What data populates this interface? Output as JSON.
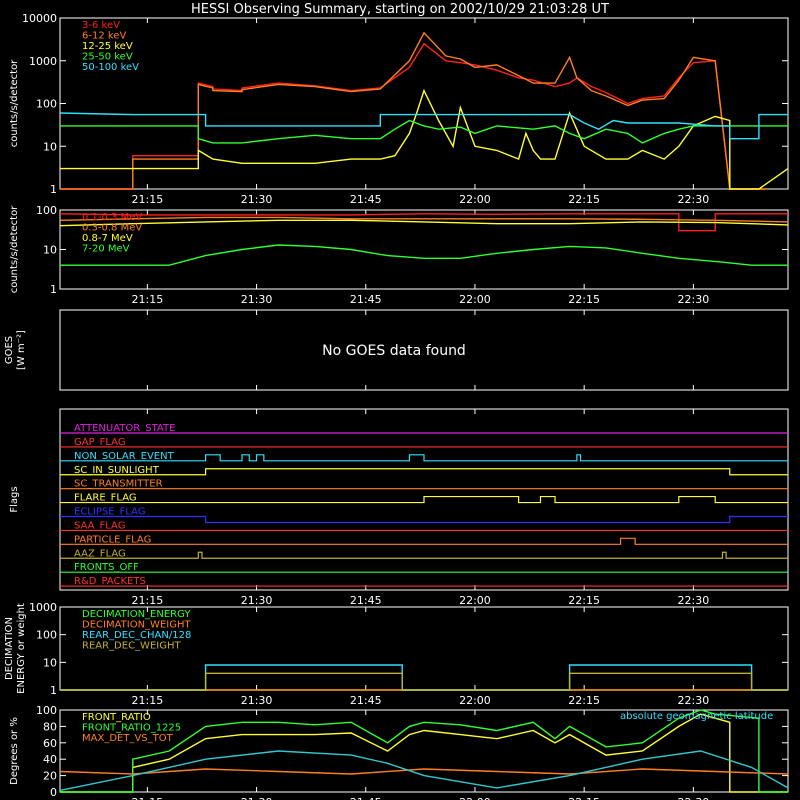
{
  "title": "HESSI Observing Summary, starting on 2002/10/29 21:03:28 UT",
  "time_ticks": [
    "21:15",
    "21:30",
    "21:45",
    "22:00",
    "22:15",
    "22:30"
  ],
  "time_range_min": [
    0,
    100
  ],
  "chart_data": [
    {
      "type": "line",
      "id": "p1",
      "ylabel": "counts/s/detector",
      "ylog": true,
      "ylim": [
        1,
        10000
      ],
      "yticks": [
        "1",
        "10",
        "100",
        "1000",
        "10000"
      ],
      "legend_placement": "top-left",
      "series": [
        {
          "name": "3-6 keV",
          "color": "#ff2020",
          "x": [
            0,
            10,
            10,
            19,
            19,
            21,
            21,
            25,
            25,
            30,
            35,
            40,
            44,
            48,
            50,
            53,
            55,
            57,
            60,
            63,
            65,
            68,
            70,
            71,
            73,
            75,
            78,
            80,
            83,
            85,
            87,
            90,
            92,
            97
          ],
          "y": [
            1,
            1,
            6,
            6,
            300,
            250,
            220,
            200,
            230,
            300,
            260,
            200,
            230,
            700,
            2500,
            1000,
            900,
            800,
            600,
            400,
            350,
            250,
            300,
            400,
            250,
            180,
            100,
            130,
            150,
            400,
            900,
            1000,
            1,
            1
          ]
        },
        {
          "name": "6-12 keV",
          "color": "#ff7f1f",
          "x": [
            0,
            10,
            10,
            19,
            19,
            21,
            21,
            25,
            25,
            30,
            35,
            40,
            44,
            48,
            50,
            53,
            55,
            57,
            60,
            63,
            65,
            68,
            70,
            71,
            73,
            75,
            78,
            80,
            83,
            85,
            87,
            90,
            92,
            97
          ],
          "y": [
            1,
            1,
            5,
            5,
            280,
            230,
            200,
            190,
            210,
            280,
            250,
            190,
            220,
            1000,
            4500,
            1300,
            1100,
            700,
            800,
            450,
            300,
            300,
            1200,
            400,
            200,
            150,
            90,
            120,
            130,
            350,
            1200,
            1000,
            1,
            1
          ]
        },
        {
          "name": "12-25 keV",
          "color": "#ffff30",
          "x": [
            0,
            10,
            10,
            19,
            19,
            21,
            25,
            30,
            35,
            40,
            43,
            44,
            46,
            48,
            49,
            50,
            52,
            54,
            55,
            57,
            60,
            63,
            64,
            65,
            66,
            68,
            70,
            72,
            75,
            78,
            80,
            83,
            85,
            87,
            90,
            92,
            92,
            96,
            100
          ],
          "y": [
            3,
            3,
            3,
            3,
            8,
            5,
            4,
            4,
            4,
            5,
            5,
            5,
            6,
            20,
            60,
            200,
            40,
            10,
            80,
            10,
            8,
            5,
            20,
            8,
            5,
            5,
            60,
            10,
            5,
            5,
            8,
            5,
            10,
            30,
            50,
            40,
            1,
            1,
            3
          ]
        },
        {
          "name": "25-50 keV",
          "color": "#30ff30",
          "x": [
            0,
            10,
            10,
            19,
            19,
            21,
            25,
            30,
            35,
            40,
            44,
            46,
            48,
            50,
            52,
            55,
            57,
            60,
            65,
            68,
            70,
            72,
            75,
            78,
            80,
            83,
            85,
            87,
            90,
            92,
            92,
            96,
            100
          ],
          "y": [
            30,
            30,
            30,
            30,
            15,
            12,
            12,
            15,
            18,
            15,
            15,
            25,
            40,
            30,
            25,
            28,
            20,
            30,
            25,
            30,
            20,
            15,
            25,
            20,
            12,
            20,
            25,
            30,
            30,
            30,
            30,
            30,
            30
          ]
        },
        {
          "name": "50-100 keV",
          "color": "#30e0ff",
          "x": [
            0,
            10,
            19,
            20,
            20,
            25,
            30,
            35,
            40,
            44,
            44,
            50,
            60,
            65,
            70,
            72,
            74,
            76,
            78,
            80,
            85,
            90,
            92,
            92,
            96,
            96,
            100
          ],
          "y": [
            60,
            55,
            55,
            55,
            30,
            30,
            30,
            30,
            30,
            30,
            55,
            55,
            55,
            55,
            55,
            35,
            25,
            40,
            35,
            35,
            35,
            30,
            30,
            15,
            15,
            55,
            55
          ]
        }
      ]
    },
    {
      "type": "line",
      "id": "p2",
      "ylabel": "counts/s/detector",
      "ylog": true,
      "ylim": [
        1,
        100
      ],
      "yticks": [
        "1",
        "10",
        "100"
      ],
      "legend_placement": "top-left",
      "series": [
        {
          "name": "0.1-0.3 MeV",
          "color": "#ff2020",
          "x": [
            0,
            10,
            20,
            30,
            40,
            50,
            60,
            70,
            80,
            85,
            85,
            90,
            90,
            100
          ],
          "y": [
            80,
            75,
            75,
            75,
            75,
            80,
            78,
            80,
            80,
            80,
            30,
            30,
            80,
            80
          ]
        },
        {
          "name": "0.3-0.8 MeV",
          "color": "#ff7f1f",
          "x": [
            0,
            10,
            20,
            30,
            40,
            50,
            60,
            70,
            80,
            90,
            100
          ],
          "y": [
            55,
            60,
            65,
            65,
            60,
            60,
            60,
            60,
            58,
            55,
            50
          ]
        },
        {
          "name": "0.8-7 MeV",
          "color": "#ffff30",
          "x": [
            0,
            10,
            20,
            30,
            40,
            50,
            60,
            70,
            80,
            90,
            100
          ],
          "y": [
            40,
            45,
            50,
            55,
            55,
            50,
            45,
            45,
            50,
            48,
            42
          ]
        },
        {
          "name": "7-20 MeV",
          "color": "#30ff30",
          "x": [
            0,
            10,
            15,
            20,
            25,
            30,
            35,
            40,
            45,
            50,
            55,
            60,
            65,
            70,
            75,
            80,
            85,
            90,
            95,
            100
          ],
          "y": [
            4,
            4,
            4,
            7,
            10,
            13,
            12,
            10,
            7,
            6,
            6,
            8,
            10,
            12,
            11,
            8,
            6,
            5,
            4,
            4
          ]
        }
      ]
    },
    {
      "type": "text",
      "id": "p3",
      "ylabel": "GOES",
      "ylabel2": "[W m⁻²]",
      "message": "No GOES data found"
    },
    {
      "type": "line",
      "id": "p4",
      "ylabel": "Flags",
      "flags": [
        {
          "name": "ATTENUATOR_STATE",
          "color": "#e020e0",
          "segments": []
        },
        {
          "name": "GAP_FLAG",
          "color": "#ff3030",
          "segments": []
        },
        {
          "name": "NON_SOLAR_EVENT",
          "color": "#30e0ff",
          "segments": [
            [
              20,
              22
            ],
            [
              25,
              26
            ],
            [
              27,
              28
            ],
            [
              48,
              50
            ],
            [
              71,
              71.5
            ]
          ]
        },
        {
          "name": "SC_IN_SUNLIGHT",
          "color": "#ffff30",
          "segments": [
            [
              20,
              92
            ]
          ]
        },
        {
          "name": "SC_TRANSMITTER",
          "color": "#ff7f1f",
          "segments": []
        },
        {
          "name": "FLARE_FLAG",
          "color": "#ffff30",
          "segments": [
            [
              50,
              63
            ],
            [
              66,
              68
            ],
            [
              85,
              90
            ]
          ]
        },
        {
          "name": "ECLIPSE_FLAG",
          "color": "#3030ff",
          "inverted": true,
          "segments": [
            [
              20,
              92
            ]
          ]
        },
        {
          "name": "SAA_FLAG",
          "color": "#ff3030",
          "segments": []
        },
        {
          "name": "PARTICLE_FLAG",
          "color": "#ff7f1f",
          "segments": [
            [
              77,
              79
            ]
          ]
        },
        {
          "name": "AAZ_FLAG",
          "color": "#c0b030",
          "segments": [
            [
              19,
              19.5
            ],
            [
              91,
              91.5
            ]
          ]
        },
        {
          "name": "FRONTS_OFF",
          "color": "#30ff30",
          "segments": []
        },
        {
          "name": "R&D_PACKETS",
          "color": "#ff3030",
          "segments": []
        }
      ]
    },
    {
      "type": "line",
      "id": "p5",
      "ylabel": "DECIMATION",
      "ylabel2": "ENERGY or weight",
      "ylog": true,
      "ylim": [
        1,
        1000
      ],
      "yticks": [
        "1",
        "10",
        "100",
        "1000"
      ],
      "legend_placement": "top-left",
      "series": [
        {
          "name": "DECIMATION_ENERGY",
          "color": "#30ff30",
          "x": [
            0,
            100
          ],
          "y": [
            1,
            1
          ]
        },
        {
          "name": "DECIMATION_WEIGHT",
          "color": "#ff7f1f",
          "x": [
            0,
            100
          ],
          "y": [
            1,
            1
          ]
        },
        {
          "name": "REAR_DEC_CHAN/128",
          "color": "#30e0ff",
          "x": [
            0,
            20,
            20,
            47,
            47,
            70,
            70,
            95,
            95,
            100
          ],
          "y": [
            1,
            1,
            8,
            8,
            1,
            1,
            8,
            8,
            1,
            1
          ]
        },
        {
          "name": "REAR_DEC_WEIGHT",
          "color": "#c0b030",
          "x": [
            0,
            20,
            20,
            47,
            47,
            70,
            70,
            95,
            95,
            100
          ],
          "y": [
            1,
            1,
            4,
            4,
            1,
            1,
            4,
            4,
            1,
            1
          ]
        }
      ]
    },
    {
      "type": "line",
      "id": "p6",
      "ylabel": "Degrees or %",
      "ylog": false,
      "ylim": [
        0,
        100
      ],
      "yticks": [
        "0",
        "20",
        "40",
        "60",
        "80",
        "100"
      ],
      "legend_placement": "top-left",
      "extra_label": "absolute geomagnetic latitude",
      "series": [
        {
          "name": "FRONT_RATIO",
          "color": "#ffff30",
          "x": [
            0,
            10,
            10,
            15,
            20,
            25,
            30,
            35,
            40,
            45,
            48,
            50,
            55,
            60,
            65,
            68,
            70,
            75,
            80,
            85,
            88,
            90,
            92,
            92,
            100
          ],
          "y": [
            0,
            0,
            30,
            40,
            65,
            70,
            70,
            70,
            72,
            50,
            70,
            75,
            70,
            65,
            75,
            60,
            70,
            45,
            50,
            80,
            95,
            90,
            85,
            0,
            0
          ]
        },
        {
          "name": "FRONT_RATIO_1225",
          "color": "#30ff30",
          "x": [
            0,
            10,
            10,
            15,
            20,
            25,
            30,
            35,
            40,
            45,
            48,
            50,
            55,
            60,
            65,
            68,
            70,
            75,
            80,
            85,
            88,
            90,
            96,
            96,
            100
          ],
          "y": [
            0,
            0,
            40,
            50,
            80,
            85,
            85,
            82,
            85,
            60,
            80,
            85,
            82,
            75,
            85,
            65,
            80,
            55,
            60,
            90,
            100,
            95,
            90,
            0,
            0
          ]
        },
        {
          "name": "MAX_DET_VS_TOT",
          "color": "#ff7f1f",
          "x": [
            0,
            10,
            20,
            30,
            40,
            50,
            60,
            70,
            80,
            90,
            100
          ],
          "y": [
            25,
            22,
            28,
            25,
            22,
            28,
            25,
            22,
            28,
            25,
            22
          ]
        },
        {
          "name": "absolute geomagnetic latitude",
          "color": "#30c8d0",
          "x": [
            0,
            10,
            20,
            30,
            40,
            45,
            50,
            60,
            70,
            80,
            88,
            95,
            100
          ],
          "y": [
            2,
            20,
            40,
            50,
            45,
            35,
            20,
            5,
            20,
            40,
            50,
            30,
            5
          ]
        }
      ]
    }
  ]
}
